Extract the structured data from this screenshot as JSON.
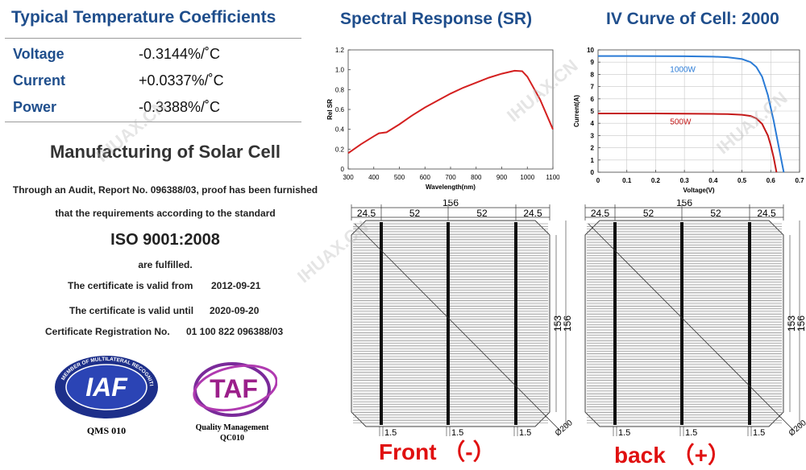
{
  "coefficients": {
    "title": "Typical Temperature Coefficients",
    "rows": [
      {
        "label": "Voltage",
        "value": "-0.3144%/˚C"
      },
      {
        "label": "Current",
        "value": "+0.0337%/˚C"
      },
      {
        "label": "Power",
        "value": "-0.3388%/˚C"
      }
    ]
  },
  "certificate": {
    "title": "Manufacturing of Solar Cell",
    "line1": "Through an Audit, Report No. 096388/03, proof has been furnished",
    "line2": "that the requirements according to the standard",
    "standard": "ISO 9001:2008",
    "fulfilled": "are fulfilled.",
    "valid_from_label": "The certificate is valid from",
    "valid_from": "2012-09-21",
    "valid_until_label": "The certificate is valid until",
    "valid_until": "2020-09-20",
    "registration_label": "Certificate Registration No.",
    "registration_no": "01 100 822 096388/03",
    "iaf_logo_text": "IAF",
    "iaf_ring_text": "MEMBER OF MULTILATERAL RECOGNITION ARRANGEMENT",
    "iaf_caption": "QMS 010",
    "taf_logo_text": "TAF",
    "taf_caption1": "Quality Management",
    "taf_caption2": "QC010"
  },
  "watermark": "IHUAX.CN",
  "chart_data": [
    {
      "type": "line",
      "title": "Spectral Response (SR)",
      "xlabel": "Wavelength(nm)",
      "ylabel": "Rel SR",
      "xlim": [
        300,
        1100
      ],
      "ylim": [
        0,
        1.2
      ],
      "x_ticks": [
        "300",
        "400",
        "500",
        "600",
        "700",
        "800",
        "900",
        "1000",
        "1100"
      ],
      "y_ticks": [
        "0",
        "0.2",
        "0.4",
        "0.6",
        "0.8",
        "1.0",
        "1.2"
      ],
      "series": [
        {
          "color": "#d42020",
          "x": [
            300,
            350,
            400,
            420,
            450,
            500,
            550,
            600,
            650,
            700,
            750,
            800,
            850,
            900,
            950,
            980,
            1000,
            1050,
            1100
          ],
          "y": [
            0.16,
            0.25,
            0.33,
            0.36,
            0.37,
            0.45,
            0.54,
            0.62,
            0.69,
            0.76,
            0.82,
            0.87,
            0.92,
            0.96,
            0.99,
            0.985,
            0.93,
            0.7,
            0.4
          ]
        }
      ],
      "grid": false
    },
    {
      "type": "line",
      "title": "IV Curve of Cell: 2000",
      "xlabel": "Voltage(V)",
      "ylabel": "Current(A)",
      "xlim": [
        0,
        0.7
      ],
      "ylim": [
        0,
        10
      ],
      "x_ticks": [
        "0",
        "0.1",
        "0.2",
        "0.3",
        "0.4",
        "0.5",
        "0.6",
        "0.7"
      ],
      "y_ticks": [
        "0",
        "1",
        "2",
        "3",
        "4",
        "5",
        "6",
        "7",
        "8",
        "9",
        "10"
      ],
      "series": [
        {
          "name": "1000W",
          "color": "#2a7bd6",
          "x": [
            0,
            0.1,
            0.2,
            0.3,
            0.4,
            0.45,
            0.5,
            0.53,
            0.55,
            0.57,
            0.59,
            0.61,
            0.63,
            0.645
          ],
          "y": [
            9.5,
            9.5,
            9.49,
            9.48,
            9.45,
            9.4,
            9.25,
            9.0,
            8.6,
            7.8,
            6.3,
            4.2,
            1.8,
            0
          ]
        },
        {
          "name": "500W",
          "color": "#c41818",
          "x": [
            0,
            0.1,
            0.2,
            0.3,
            0.4,
            0.45,
            0.5,
            0.53,
            0.55,
            0.57,
            0.59,
            0.6,
            0.61,
            0.62
          ],
          "y": [
            4.8,
            4.8,
            4.8,
            4.79,
            4.77,
            4.75,
            4.7,
            4.6,
            4.4,
            3.95,
            3.0,
            2.2,
            1.2,
            0
          ]
        }
      ],
      "grid": true
    }
  ],
  "cells": {
    "dims": {
      "total": "156",
      "margin": "24.5",
      "gap": "52",
      "busbar_w": "1.5",
      "height_inner": "153",
      "height": "156",
      "diag": "Ø200"
    },
    "front_label": "Front （-）",
    "back_label": "back （+）"
  }
}
